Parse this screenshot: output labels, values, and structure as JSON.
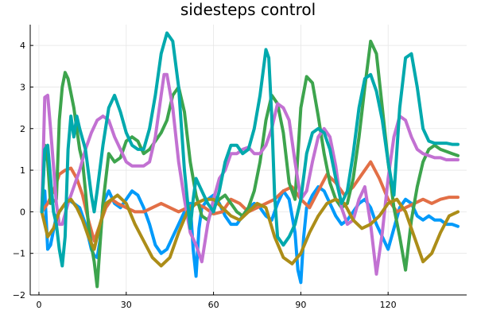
{
  "chart_data": {
    "type": "line",
    "title": "sidesteps control",
    "xlabel": "",
    "ylabel": "",
    "xlim": [
      -3,
      147
    ],
    "ylim": [
      -2,
      4.5
    ],
    "x_ticks": [
      0,
      30,
      60,
      90,
      120
    ],
    "y_ticks": [
      -2,
      -1,
      0,
      1,
      2,
      3,
      4
    ],
    "grid": true,
    "legend": "none",
    "series": [
      {
        "color": "#009AFA",
        "x": [
          1,
          2,
          3,
          4,
          6,
          8,
          10,
          12,
          14,
          16,
          18,
          19,
          20,
          21,
          22,
          24,
          26,
          28,
          30,
          32,
          34,
          36,
          38,
          40,
          42,
          44,
          46,
          48,
          50,
          52,
          53,
          54,
          55,
          56,
          58,
          60,
          62,
          64,
          66,
          68,
          70,
          72,
          74,
          76,
          78,
          80,
          82,
          84,
          86,
          88,
          89,
          90,
          91,
          92,
          94,
          96,
          98,
          100,
          102,
          104,
          106,
          108,
          110,
          112,
          114,
          116,
          118,
          120,
          122,
          124,
          126,
          128,
          130,
          132,
          134,
          136,
          138,
          140,
          142,
          144
        ],
        "y": [
          0,
          0.5,
          -0.9,
          -0.8,
          -0.1,
          0.1,
          0.3,
          0.2,
          0.1,
          -0.3,
          -0.9,
          -1.05,
          -1.1,
          -0.7,
          0.2,
          0.5,
          0.2,
          0.1,
          0.3,
          0.5,
          0.4,
          0.1,
          -0.3,
          -0.8,
          -1.0,
          -0.9,
          -0.6,
          -0.3,
          0.0,
          0.2,
          -0.9,
          -1.55,
          -0.4,
          0.1,
          0.3,
          0.4,
          0.2,
          -0.1,
          -0.3,
          -0.3,
          -0.1,
          0.1,
          0.2,
          0.1,
          -0.1,
          -0.2,
          0.2,
          0.5,
          0.3,
          -0.5,
          -1.4,
          -1.7,
          -0.6,
          0.1,
          0.4,
          0.6,
          0.5,
          0.2,
          -0.1,
          -0.3,
          -0.2,
          0.0,
          0.2,
          0.3,
          0.1,
          -0.3,
          -0.6,
          -0.9,
          -0.4,
          0.1,
          0.3,
          0.2,
          -0.1,
          -0.2,
          -0.1,
          -0.2,
          -0.2,
          -0.3,
          -0.3,
          -0.35
        ]
      },
      {
        "color": "#E26F46",
        "x": [
          1,
          3,
          5,
          7,
          9,
          11,
          13,
          15,
          17,
          19,
          21,
          23,
          25,
          27,
          30,
          33,
          36,
          39,
          42,
          45,
          48,
          51,
          54,
          57,
          60,
          63,
          66,
          69,
          72,
          75,
          78,
          81,
          84,
          87,
          90,
          93,
          96,
          99,
          102,
          105,
          108,
          111,
          114,
          117,
          120,
          123,
          126,
          129,
          132,
          135,
          138,
          141,
          144
        ],
        "y": [
          0,
          0.2,
          0.5,
          0.9,
          1.0,
          1.05,
          0.8,
          0.4,
          -0.2,
          -0.7,
          -0.3,
          0.1,
          0.3,
          0.2,
          0.1,
          0.0,
          0.0,
          0.1,
          0.2,
          0.1,
          0.0,
          0.1,
          0.2,
          0.1,
          -0.05,
          0.0,
          0.3,
          0.2,
          0.0,
          0.1,
          0.2,
          0.3,
          0.5,
          0.6,
          0.3,
          0.1,
          0.5,
          0.9,
          0.7,
          0.4,
          0.6,
          0.9,
          1.2,
          0.8,
          0.3,
          0.0,
          0.1,
          0.2,
          0.3,
          0.2,
          0.3,
          0.35,
          0.35
        ]
      },
      {
        "color": "#3DA44D",
        "x": [
          1,
          2,
          3,
          4,
          6,
          7,
          8,
          9,
          10,
          12,
          14,
          15,
          16,
          17,
          18,
          19,
          20,
          21,
          22,
          24,
          26,
          28,
          30,
          32,
          34,
          36,
          38,
          40,
          42,
          44,
          46,
          48,
          50,
          52,
          54,
          56,
          58,
          60,
          62,
          64,
          66,
          68,
          70,
          72,
          74,
          76,
          78,
          80,
          82,
          84,
          86,
          88,
          90,
          92,
          94,
          96,
          98,
          100,
          102,
          104,
          106,
          108,
          110,
          112,
          114,
          116,
          118,
          120,
          122,
          124,
          126,
          128,
          130,
          132,
          134,
          136,
          138,
          140,
          142,
          144
        ],
        "y": [
          0,
          1.6,
          1.2,
          0.2,
          0.3,
          2.2,
          3.0,
          3.35,
          3.2,
          2.5,
          1.5,
          1.2,
          0.5,
          -0.3,
          -0.8,
          -1.2,
          -1.8,
          -0.8,
          0.2,
          1.4,
          1.2,
          1.3,
          1.7,
          1.8,
          1.7,
          1.4,
          1.5,
          1.7,
          1.9,
          2.2,
          2.8,
          3.0,
          2.4,
          1.2,
          0.4,
          -0.1,
          -0.2,
          0.1,
          0.3,
          0.4,
          0.2,
          0.0,
          -0.1,
          0.1,
          0.5,
          1.2,
          2.2,
          2.8,
          2.6,
          1.9,
          0.7,
          0.3,
          2.5,
          3.25,
          3.1,
          2.3,
          1.4,
          0.7,
          0.3,
          0.1,
          0.2,
          0.8,
          1.8,
          3.0,
          4.1,
          3.8,
          2.5,
          1.2,
          0.1,
          -0.6,
          -1.4,
          -0.2,
          0.6,
          1.2,
          1.5,
          1.6,
          1.5,
          1.45,
          1.4,
          1.35
        ]
      },
      {
        "color": "#C271D2",
        "x": [
          1,
          2,
          3,
          4,
          5,
          6,
          7,
          8,
          10,
          12,
          14,
          16,
          18,
          20,
          22,
          24,
          26,
          28,
          30,
          32,
          34,
          36,
          38,
          40,
          42,
          43,
          44,
          46,
          48,
          50,
          52,
          54,
          56,
          58,
          60,
          62,
          64,
          66,
          68,
          70,
          72,
          74,
          76,
          78,
          80,
          82,
          84,
          86,
          88,
          90,
          92,
          94,
          96,
          98,
          100,
          102,
          104,
          106,
          108,
          110,
          112,
          114,
          116,
          118,
          120,
          122,
          124,
          126,
          128,
          130,
          132,
          134,
          136,
          138,
          140,
          142,
          144
        ],
        "y": [
          0,
          2.75,
          2.8,
          2.0,
          1.1,
          0.2,
          -0.3,
          -0.3,
          0.2,
          0.6,
          1.0,
          1.5,
          1.9,
          2.2,
          2.3,
          2.2,
          1.8,
          1.5,
          1.2,
          1.1,
          1.1,
          1.1,
          1.2,
          1.8,
          2.8,
          3.3,
          3.3,
          2.5,
          1.2,
          0.3,
          -0.5,
          -0.8,
          -1.2,
          -0.3,
          0.3,
          0.8,
          1.0,
          1.4,
          1.4,
          1.5,
          1.55,
          1.4,
          1.4,
          1.6,
          2.0,
          2.6,
          2.5,
          2.2,
          1.2,
          0.3,
          0.5,
          1.2,
          1.8,
          2.0,
          1.8,
          1.1,
          0.1,
          -0.3,
          -0.2,
          0.3,
          0.6,
          -0.3,
          -1.5,
          -0.5,
          0.8,
          1.8,
          2.3,
          2.2,
          1.8,
          1.5,
          1.4,
          1.35,
          1.3,
          1.3,
          1.25,
          1.25,
          1.25
        ]
      },
      {
        "color": "#AC8D18",
        "x": [
          1,
          3,
          5,
          7,
          9,
          11,
          13,
          15,
          17,
          19,
          21,
          23,
          25,
          27,
          30,
          33,
          36,
          39,
          42,
          45,
          48,
          51,
          54,
          57,
          60,
          63,
          66,
          69,
          72,
          75,
          78,
          81,
          84,
          87,
          90,
          93,
          96,
          99,
          102,
          105,
          108,
          111,
          114,
          117,
          120,
          123,
          126,
          129,
          132,
          135,
          138,
          141,
          144
        ],
        "y": [
          0,
          -0.6,
          -0.4,
          0.0,
          0.2,
          0.3,
          0.1,
          -0.2,
          -0.6,
          -0.9,
          -0.3,
          0.2,
          0.3,
          0.4,
          0.2,
          -0.3,
          -0.7,
          -1.1,
          -1.3,
          -1.1,
          -0.5,
          0.0,
          0.2,
          0.3,
          0.3,
          0.1,
          -0.1,
          -0.2,
          0.0,
          0.2,
          0.1,
          -0.6,
          -1.1,
          -1.25,
          -1.0,
          -0.5,
          -0.1,
          0.2,
          0.3,
          0.2,
          -0.2,
          -0.4,
          -0.3,
          -0.1,
          0.2,
          0.3,
          0.0,
          -0.6,
          -1.2,
          -1.0,
          -0.5,
          -0.1,
          0.0
        ]
      },
      {
        "color": "#00A9AD",
        "x": [
          1,
          2,
          3,
          4,
          5,
          6,
          7,
          8,
          9,
          10,
          11,
          12,
          13,
          14,
          16,
          18,
          19,
          20,
          22,
          24,
          26,
          28,
          30,
          32,
          34,
          36,
          38,
          40,
          42,
          44,
          46,
          48,
          50,
          52,
          53,
          54,
          56,
          58,
          60,
          62,
          64,
          66,
          68,
          70,
          72,
          74,
          76,
          78,
          79,
          80,
          81,
          82,
          84,
          86,
          88,
          90,
          92,
          94,
          96,
          98,
          100,
          102,
          104,
          106,
          108,
          110,
          112,
          114,
          116,
          118,
          120,
          122,
          124,
          126,
          128,
          130,
          132,
          134,
          136,
          138,
          140,
          142,
          144
        ],
        "y": [
          0,
          1.5,
          1.6,
          0.8,
          0.0,
          -0.3,
          -0.9,
          -1.3,
          -0.6,
          1.5,
          2.3,
          1.8,
          2.3,
          2.0,
          1.5,
          0.4,
          0.0,
          0.5,
          1.6,
          2.5,
          2.8,
          2.4,
          1.9,
          1.6,
          1.5,
          1.5,
          2.0,
          2.8,
          3.8,
          4.3,
          4.1,
          3.0,
          1.0,
          -0.4,
          0.3,
          0.8,
          0.5,
          0.2,
          0.0,
          0.5,
          1.2,
          1.6,
          1.6,
          1.4,
          1.5,
          2.0,
          2.8,
          3.9,
          3.7,
          2.3,
          0.4,
          -0.6,
          -0.8,
          -0.6,
          -0.3,
          0.3,
          1.4,
          1.9,
          2.0,
          1.9,
          1.5,
          0.8,
          0.2,
          0.5,
          1.4,
          2.5,
          3.2,
          3.3,
          2.9,
          2.2,
          1.2,
          0.4,
          2.5,
          3.7,
          3.8,
          3.0,
          2.0,
          1.7,
          1.65,
          1.65,
          1.65,
          1.62,
          1.62
        ]
      }
    ]
  }
}
